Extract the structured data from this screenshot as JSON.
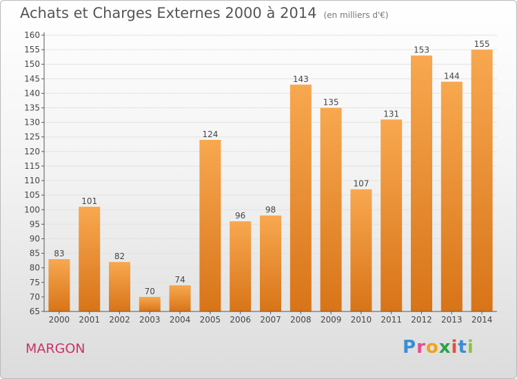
{
  "title": "Achats et Charges Externes 2000 à 2014",
  "unit": "(en milliers d'€)",
  "commune": "MARGON",
  "logo": {
    "letters": [
      "P",
      "r",
      "o",
      "x",
      "i",
      "t",
      "i"
    ],
    "colors": [
      "#3a8fd4",
      "#e94c8a",
      "#f2a21d",
      "#2aa34a",
      "#e94c3d",
      "#3a8fd4",
      "#8bc53f"
    ]
  },
  "chart_data": {
    "type": "bar",
    "categories": [
      "2000",
      "2001",
      "2002",
      "2003",
      "2004",
      "2005",
      "2006",
      "2007",
      "2008",
      "2009",
      "2010",
      "2011",
      "2012",
      "2013",
      "2014"
    ],
    "values": [
      83,
      101,
      82,
      70,
      74,
      124,
      96,
      98,
      143,
      135,
      107,
      131,
      153,
      144,
      155
    ],
    "ylim": [
      65,
      160
    ],
    "yticks": [
      65,
      70,
      75,
      80,
      85,
      90,
      95,
      100,
      105,
      110,
      115,
      120,
      125,
      130,
      135,
      140,
      145,
      150,
      155,
      160
    ],
    "grid": true,
    "colors": {
      "bar_light": "#f8a850",
      "bar_dark": "#d87418",
      "axis": "#555555",
      "grid": "#e2e2e2"
    }
  }
}
